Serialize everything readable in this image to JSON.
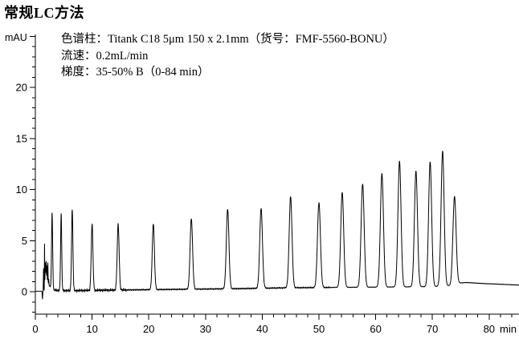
{
  "title": "常规LC方法",
  "annotation": {
    "column_line": "色谱柱：Titank C18 5μm 150 x 2.1mm（货号：FMF-5560-BONU）",
    "flow_line": "流速：0.2mL/min",
    "gradient_line": "梯度：35-50% B（0-84 min）"
  },
  "chart_data": {
    "type": "line",
    "title": "常规LC方法",
    "xlabel": "min",
    "ylabel": "mAU",
    "line_color": "#000000",
    "background_color": "#ffffff",
    "grid": false,
    "x_axis": {
      "min": 0,
      "max": 85.3,
      "major_ticks": [
        0,
        10,
        20,
        30,
        40,
        50,
        60,
        70,
        80
      ],
      "minor_step": 2,
      "unit_label": "min"
    },
    "y_axis": {
      "min": -2.2,
      "max": 25.2,
      "major_ticks": [
        0,
        5,
        10,
        15,
        20
      ],
      "unlabeled_major_ticks": [
        25
      ],
      "minor_step": 1,
      "unit_label": "mAU"
    },
    "peaks": [
      {
        "t_min": 2.95,
        "height_mau": 7.5,
        "sigma_min": 0.1
      },
      {
        "t_min": 4.55,
        "height_mau": 7.4,
        "sigma_min": 0.1
      },
      {
        "t_min": 6.5,
        "height_mau": 7.9,
        "sigma_min": 0.12
      },
      {
        "t_min": 10.0,
        "height_mau": 6.45,
        "sigma_min": 0.15
      },
      {
        "t_min": 14.6,
        "height_mau": 6.4,
        "sigma_min": 0.17
      },
      {
        "t_min": 20.8,
        "height_mau": 6.45,
        "sigma_min": 0.19
      },
      {
        "t_min": 27.5,
        "height_mau": 6.9,
        "sigma_min": 0.22
      },
      {
        "t_min": 33.9,
        "height_mau": 7.8,
        "sigma_min": 0.23
      },
      {
        "t_min": 39.8,
        "height_mau": 7.8,
        "sigma_min": 0.24
      },
      {
        "t_min": 45.0,
        "height_mau": 8.9,
        "sigma_min": 0.25
      },
      {
        "t_min": 50.0,
        "height_mau": 8.3,
        "sigma_min": 0.26
      },
      {
        "t_min": 54.1,
        "height_mau": 9.3,
        "sigma_min": 0.26
      },
      {
        "t_min": 57.7,
        "height_mau": 10.1,
        "sigma_min": 0.27
      },
      {
        "t_min": 61.1,
        "height_mau": 11.1,
        "sigma_min": 0.27
      },
      {
        "t_min": 64.2,
        "height_mau": 12.3,
        "sigma_min": 0.27
      },
      {
        "t_min": 67.1,
        "height_mau": 11.3,
        "sigma_min": 0.27
      },
      {
        "t_min": 69.6,
        "height_mau": 12.2,
        "sigma_min": 0.27
      },
      {
        "t_min": 71.8,
        "height_mau": 13.2,
        "sigma_min": 0.27
      },
      {
        "t_min": 73.9,
        "height_mau": 8.6,
        "sigma_min": 0.28
      }
    ],
    "injection_disturbance": [
      {
        "t_min": 1.25,
        "height_mau": -0.75,
        "sigma_min": 0.04
      },
      {
        "t_min": 1.45,
        "height_mau": 2.2,
        "sigma_min": 0.035
      },
      {
        "t_min": 1.62,
        "height_mau": 4.5,
        "sigma_min": 0.022
      },
      {
        "t_min": 1.75,
        "height_mau": 2.7,
        "sigma_min": 0.05
      },
      {
        "t_min": 1.9,
        "height_mau": 2.85,
        "sigma_min": 0.05
      },
      {
        "t_min": 2.05,
        "height_mau": 2.4,
        "sigma_min": 0.045
      },
      {
        "t_min": 2.2,
        "height_mau": 2.7,
        "sigma_min": 0.04
      },
      {
        "t_min": 2.35,
        "height_mau": 1.1,
        "sigma_min": 0.05
      },
      {
        "t_min": 2.5,
        "height_mau": 0.45,
        "sigma_min": 0.06
      },
      {
        "t_min": 2.65,
        "height_mau": 0.3,
        "sigma_min": 0.07
      }
    ],
    "baseline_points": [
      [
        0,
        0.05
      ],
      [
        1.1,
        0.05
      ],
      [
        3.3,
        0.15
      ],
      [
        6,
        0.1
      ],
      [
        12,
        0.15
      ],
      [
        20,
        0.2
      ],
      [
        28,
        0.25
      ],
      [
        36,
        0.3
      ],
      [
        44,
        0.38
      ],
      [
        52,
        0.42
      ],
      [
        60,
        0.45
      ],
      [
        70,
        0.5
      ],
      [
        73.2,
        0.6
      ],
      [
        74.6,
        0.85
      ],
      [
        76,
        0.9
      ],
      [
        79,
        0.8
      ],
      [
        82,
        0.73
      ],
      [
        85.3,
        0.65
      ]
    ],
    "noise": {
      "early_amp_mau": 0.16,
      "mid_amp_mau": 0.08,
      "late_amp_mau": 0.03
    }
  }
}
